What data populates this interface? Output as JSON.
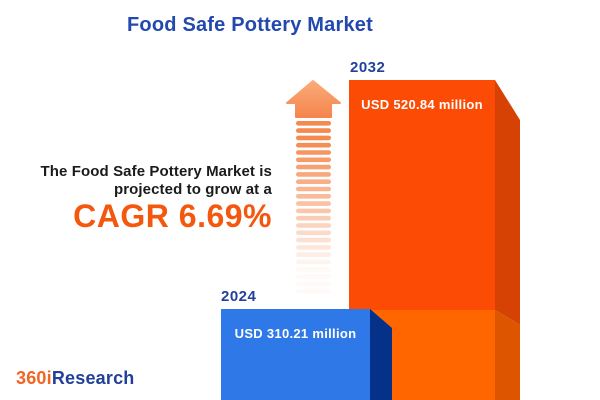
{
  "title": "Food Safe Pottery Market",
  "tagline": {
    "line1": "The Food Safe Pottery Market is",
    "line2": "projected to grow at a",
    "cagr": "CAGR 6.69%"
  },
  "chart_data": {
    "type": "bar",
    "title": "Food Safe Pottery Market",
    "categories": [
      "2024",
      "2032"
    ],
    "values": [
      310.21,
      520.84
    ],
    "unit": "USD million",
    "value_labels": [
      "USD 310.21 million",
      "USD 520.84 million"
    ],
    "cagr_percent": 6.69,
    "legend": "none",
    "grid": false,
    "annotations": [
      "growth-arrow pointing up between bars"
    ]
  },
  "logo": {
    "part1": "360i",
    "part2": "Research"
  },
  "colors": {
    "title_blue": "#2348AE",
    "year_blue": "#24409E",
    "text_dark": "#1B1B1B",
    "cagr_orange": "#F4570E",
    "bar2024_front": "#2F78E8",
    "bar2024_side": "#063189",
    "bar2032_front_top": "#FB4B04",
    "bar2032_front_bottom": "#FF6600",
    "bar2032_side_top": "#D64203",
    "bar2032_side_bottom": "#DE5500",
    "arrow_head_top": "#FAAB79",
    "arrow_head_bottom": "#F5854D",
    "arrow_stripe": "#F5894F",
    "label_white": "#FFFFFF",
    "logo_orange": "#F26522",
    "logo_blue": "#21409A",
    "background": "#FFFFFF"
  }
}
